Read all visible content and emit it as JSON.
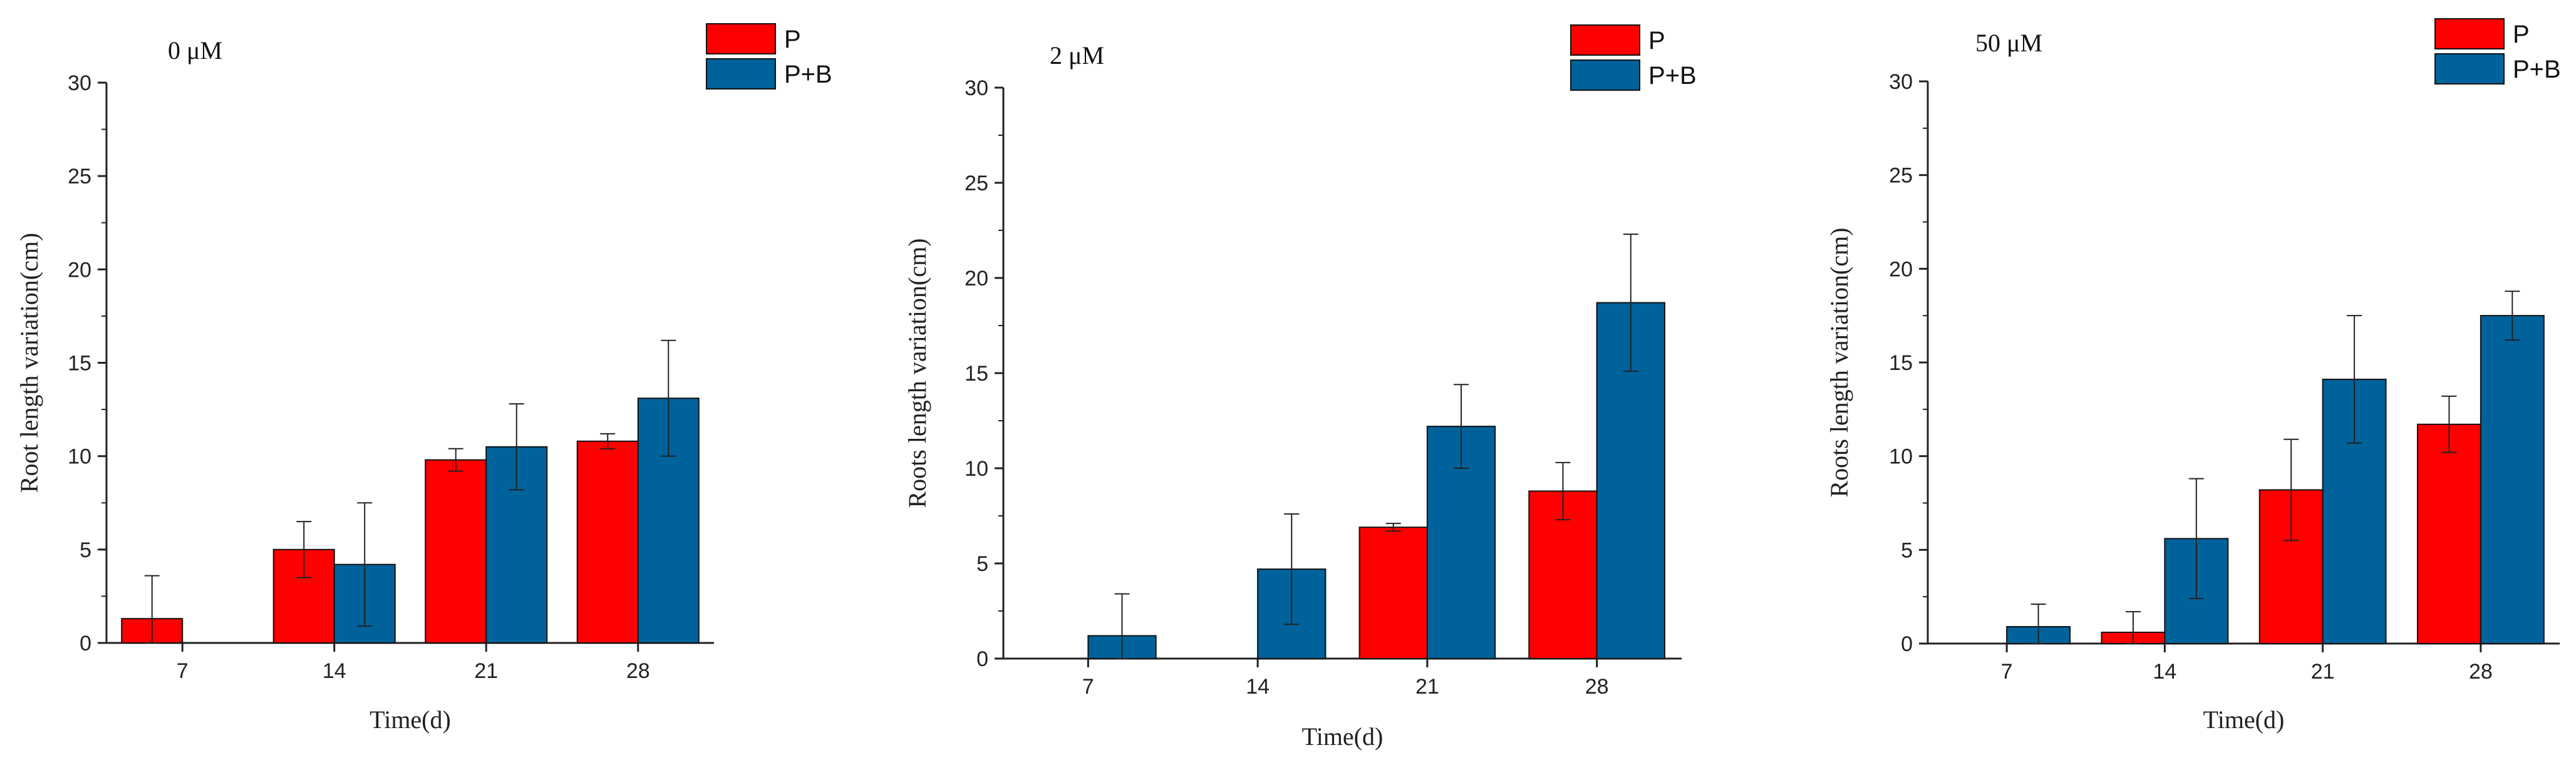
{
  "colors": {
    "P": "#ff0000",
    "P+B": "#00629b",
    "axis": "#222222",
    "error": "#222222"
  },
  "chart_data": [
    {
      "type": "bar",
      "title": "0 μM",
      "xlabel": "Time(d)",
      "ylabel": "Root length variation(cm)",
      "categories": [
        "7",
        "14",
        "21",
        "28"
      ],
      "ylim": [
        0,
        30
      ],
      "yticks": [
        "0",
        "5",
        "10",
        "15",
        "20",
        "25",
        "30"
      ],
      "legend": {
        "position": "top-right",
        "labels": [
          "P",
          "P+B"
        ]
      },
      "series": [
        {
          "name": "P",
          "values": [
            1.3,
            5.0,
            9.8,
            10.8
          ],
          "errors": [
            2.3,
            1.5,
            0.6,
            0.4
          ]
        },
        {
          "name": "P+B",
          "values": [
            0,
            4.2,
            10.5,
            13.1
          ],
          "errors": [
            0,
            3.3,
            2.3,
            3.1
          ]
        }
      ]
    },
    {
      "type": "bar",
      "title": "2 μM",
      "xlabel": "Time(d)",
      "ylabel": "Roots length variation(cm)",
      "categories": [
        "7",
        "14",
        "21",
        "28"
      ],
      "ylim": [
        0,
        30
      ],
      "yticks": [
        "0",
        "5",
        "10",
        "15",
        "20",
        "25",
        "30"
      ],
      "legend": {
        "position": "top-right",
        "labels": [
          "P",
          "P+B"
        ]
      },
      "series": [
        {
          "name": "P",
          "values": [
            0,
            0,
            6.9,
            8.8
          ],
          "errors": [
            0,
            0,
            0.2,
            1.5
          ]
        },
        {
          "name": "P+B",
          "values": [
            1.2,
            4.7,
            12.2,
            18.7
          ],
          "errors": [
            2.2,
            2.9,
            2.2,
            3.6
          ]
        }
      ]
    },
    {
      "type": "bar",
      "title": "50 μM",
      "xlabel": "Time(d)",
      "ylabel": "Roots length variation(cm)",
      "categories": [
        "7",
        "14",
        "21",
        "28"
      ],
      "ylim": [
        0,
        30
      ],
      "yticks": [
        "0",
        "5",
        "10",
        "15",
        "20",
        "25",
        "30"
      ],
      "legend": {
        "position": "top-right",
        "labels": [
          "P",
          "P+B"
        ]
      },
      "series": [
        {
          "name": "P",
          "values": [
            0,
            0.6,
            8.2,
            11.7
          ],
          "errors": [
            0,
            1.1,
            2.7,
            1.5
          ]
        },
        {
          "name": "P+B",
          "values": [
            0.9,
            5.6,
            14.1,
            17.5
          ],
          "errors": [
            1.2,
            3.2,
            3.4,
            1.3
          ]
        }
      ]
    }
  ]
}
